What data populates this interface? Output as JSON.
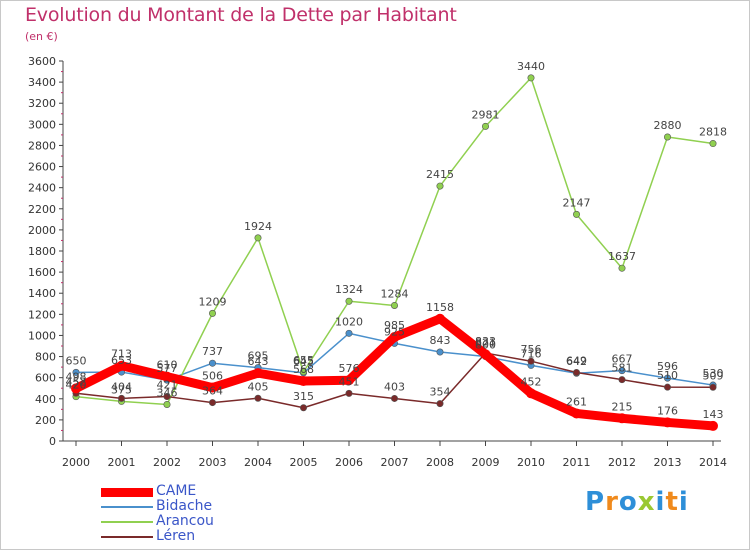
{
  "title": "Evolution du Montant de la Dette par Habitant",
  "subtitle": "(en €)",
  "brand": {
    "text": "Proxiti",
    "colors": [
      "#2e8fd8",
      "#f08a1c",
      "#2e8fd8",
      "#9ac832",
      "#2e8fd8",
      "#f08a1c",
      "#2e8fd8"
    ]
  },
  "chart_data": {
    "type": "line",
    "title": "Evolution du Montant de la Dette par Habitant",
    "subtitle": "(en €)",
    "xlabel": "",
    "ylabel": "",
    "ylim": [
      0,
      3600
    ],
    "yticks": [
      0,
      200,
      400,
      600,
      800,
      1000,
      1200,
      1400,
      1600,
      1800,
      2000,
      2200,
      2400,
      2600,
      2800,
      3000,
      3200,
      3400,
      3600
    ],
    "categories": [
      "2000",
      "2001",
      "2002",
      "2003",
      "2004",
      "2005",
      "2006",
      "2007",
      "2008",
      "2009",
      "2010",
      "2011",
      "2012",
      "2013",
      "2014"
    ],
    "grid": false,
    "legend_position": "bottom-left",
    "series": [
      {
        "name": "CAME",
        "color": "#ff0000",
        "thick": true,
        "values": [
          498,
          713,
          610,
          506,
          643,
          568,
          576,
          985,
          1158,
          821,
          452,
          261,
          215,
          176,
          143
        ],
        "labels": [
          "498",
          "713",
          "610",
          "506",
          "643",
          "568",
          "576",
          "985",
          "1158",
          "821",
          "452",
          "261",
          "215",
          "176",
          "143"
        ]
      },
      {
        "name": "Bidache",
        "color": "#4a90cc",
        "thick": false,
        "values": [
          650,
          653,
          577,
          737,
          695,
          645,
          1020,
          925,
          843,
          800,
          716,
          642,
          667,
          596,
          530
        ],
        "labels": [
          "650",
          "653",
          "577",
          "737",
          "695",
          "645",
          "1020",
          "925",
          "843",
          "800",
          "716",
          "642",
          "667",
          "596",
          "530"
        ]
      },
      {
        "name": "Arancou",
        "color": "#90d050",
        "thick": false,
        "values": [
          420,
          375,
          346,
          1209,
          1924,
          655,
          1324,
          1284,
          2415,
          2981,
          3440,
          2147,
          1637,
          2880,
          2818
        ],
        "labels": [
          "420",
          "375",
          "346",
          "1209",
          "1924",
          "655",
          "1324",
          "1284",
          "2415",
          "2981",
          "3440",
          "2147",
          "1637",
          "2880",
          "2818"
        ]
      },
      {
        "name": "Léren",
        "color": "#7a2a2a",
        "thick": false,
        "values": [
          452,
          404,
          421,
          364,
          405,
          315,
          451,
          403,
          354,
          833,
          756,
          649,
          581,
          510,
          509
        ],
        "labels": [
          "452",
          "404",
          "421",
          "364",
          "405",
          "315",
          "451",
          "403",
          "354",
          "833",
          "756",
          "649",
          "581",
          "510",
          "509"
        ]
      }
    ]
  }
}
